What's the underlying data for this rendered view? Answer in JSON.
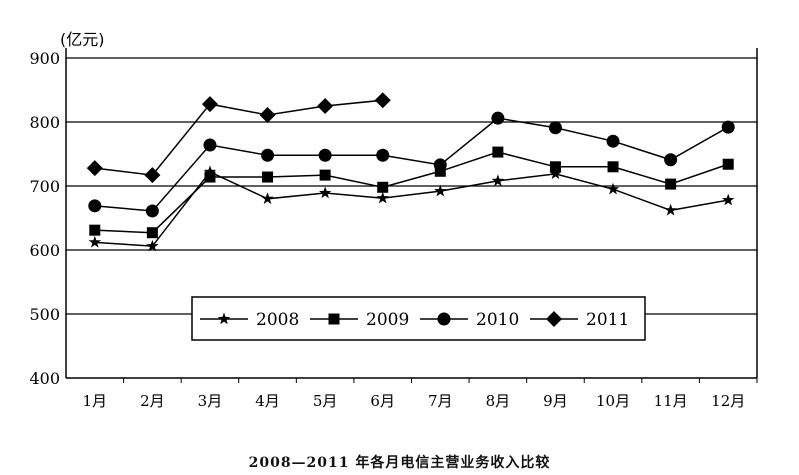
{
  "chart_data": {
    "type": "line",
    "title": "2008—2011 年各月电信主营业务收入比较",
    "ylabel": "(亿元)",
    "xlabel": "",
    "ylim": [
      400,
      900
    ],
    "yticks": [
      "400",
      "500",
      "600",
      "700",
      "800",
      "900"
    ],
    "grid": "horizontal",
    "legend_position": "bottom-center",
    "categories": [
      "1月",
      "2月",
      "3月",
      "4月",
      "5月",
      "6月",
      "7月",
      "8月",
      "9月",
      "10月",
      "11月",
      "12月"
    ],
    "series": [
      {
        "name": "2008",
        "marker": "star",
        "values": [
          612,
          606,
          722,
          680,
          689,
          681,
          692,
          708,
          719,
          695,
          662,
          678
        ]
      },
      {
        "name": "2009",
        "marker": "square",
        "values": [
          631,
          627,
          714,
          714,
          717,
          698,
          723,
          753,
          730,
          730,
          703,
          734
        ]
      },
      {
        "name": "2010",
        "marker": "circle",
        "values": [
          669,
          661,
          764,
          748,
          748,
          748,
          733,
          806,
          791,
          770,
          741,
          792
        ]
      },
      {
        "name": "2011",
        "marker": "diamond",
        "values": [
          728,
          717,
          828,
          811,
          825,
          834,
          null,
          null,
          null,
          null,
          null,
          null
        ]
      }
    ],
    "colors": {
      "line": "#000000",
      "background": "#ffffff"
    }
  }
}
